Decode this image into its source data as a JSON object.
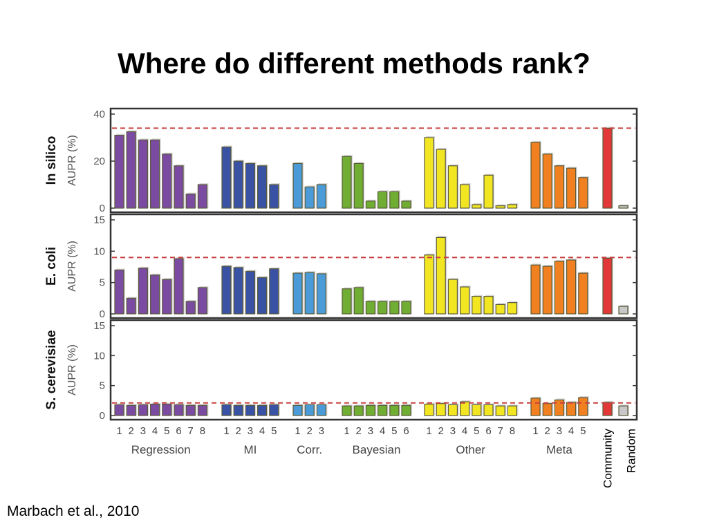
{
  "slide": {
    "title": "Where do different methods rank?",
    "citation": "Marbach et al., 2010"
  },
  "colors": {
    "Regression": "#7b4ba1",
    "MI": "#3a52a4",
    "Corr.": "#4a9bd8",
    "Bayesian": "#6fae32",
    "Other": "#f2e623",
    "Meta": "#f08020",
    "Community": "#e23838",
    "Random": "#c8c8c8",
    "reference_line": "#c84040"
  },
  "chart_data": {
    "type": "bar",
    "group_labels": [
      "Regression",
      "MI",
      "Corr.",
      "Bayesian",
      "Other",
      "Meta"
    ],
    "method_numbers": [
      [
        "1",
        "2",
        "3",
        "4",
        "5",
        "6",
        "7",
        "8"
      ],
      [
        "1",
        "2",
        "3",
        "4",
        "5"
      ],
      [
        "1",
        "2",
        "3"
      ],
      [
        "1",
        "2",
        "3",
        "4",
        "5",
        "6"
      ],
      [
        "1",
        "2",
        "3",
        "4",
        "5",
        "6",
        "7",
        "8"
      ],
      [
        "1",
        "2",
        "3",
        "4",
        "5"
      ]
    ],
    "extra_labels": [
      "Community",
      "Random"
    ],
    "panels": [
      {
        "name": "In silico",
        "ylabel": "AUPR (%)",
        "ylim": [
          0,
          40
        ],
        "yticks": [
          "0",
          "20",
          "40"
        ],
        "ytick_values": [
          0,
          20,
          40
        ],
        "reference_line": 34,
        "groups": [
          [
            31,
            32.5,
            29,
            29,
            23,
            18,
            6,
            10
          ],
          [
            26,
            20,
            19,
            18,
            10
          ],
          [
            19,
            9,
            10
          ],
          [
            22,
            19,
            3,
            7,
            7,
            3
          ],
          [
            30,
            25,
            18,
            10,
            1.5,
            14,
            1,
            1.5
          ],
          [
            28,
            23,
            18,
            17,
            13
          ]
        ],
        "community": 34,
        "random": 1
      },
      {
        "name": "E. coli",
        "ylabel": "AUPR (%)",
        "ylim": [
          0,
          15
        ],
        "yticks": [
          "0",
          "5",
          "10",
          "15"
        ],
        "ytick_values": [
          0,
          5,
          10,
          15
        ],
        "reference_line": 9,
        "groups": [
          [
            7,
            2.5,
            7.3,
            6.2,
            5.5,
            8.8,
            2,
            4.2
          ],
          [
            7.6,
            7.4,
            6.8,
            5.8,
            7.2
          ],
          [
            6.5,
            6.6,
            6.4
          ],
          [
            4,
            4.2,
            2,
            2,
            2,
            2
          ],
          [
            9.4,
            12.2,
            5.5,
            4.3,
            2.8,
            2.8,
            1.5,
            1.8
          ],
          [
            7.8,
            7.6,
            8.4,
            8.6,
            6.5
          ]
        ],
        "community": 8.9,
        "random": 1.2
      },
      {
        "name": "S. cerevisiae",
        "ylabel": "AUPR (%)",
        "ylim": [
          0,
          15
        ],
        "yticks": [
          "0",
          "5",
          "10",
          "15"
        ],
        "ytick_values": [
          0,
          5,
          10,
          15
        ],
        "reference_line": 2.1,
        "groups": [
          [
            1.8,
            1.7,
            1.8,
            1.9,
            1.9,
            1.8,
            1.7,
            1.7
          ],
          [
            1.8,
            1.7,
            1.7,
            1.7,
            1.8
          ],
          [
            1.7,
            1.8,
            1.8
          ],
          [
            1.6,
            1.6,
            1.7,
            1.7,
            1.7,
            1.7
          ],
          [
            1.9,
            2.0,
            1.8,
            2.3,
            1.8,
            1.8,
            1.6,
            1.6
          ],
          [
            2.9,
            2.0,
            2.6,
            2.2,
            3.0
          ]
        ],
        "community": 2.2,
        "random": 1.6
      }
    ]
  }
}
